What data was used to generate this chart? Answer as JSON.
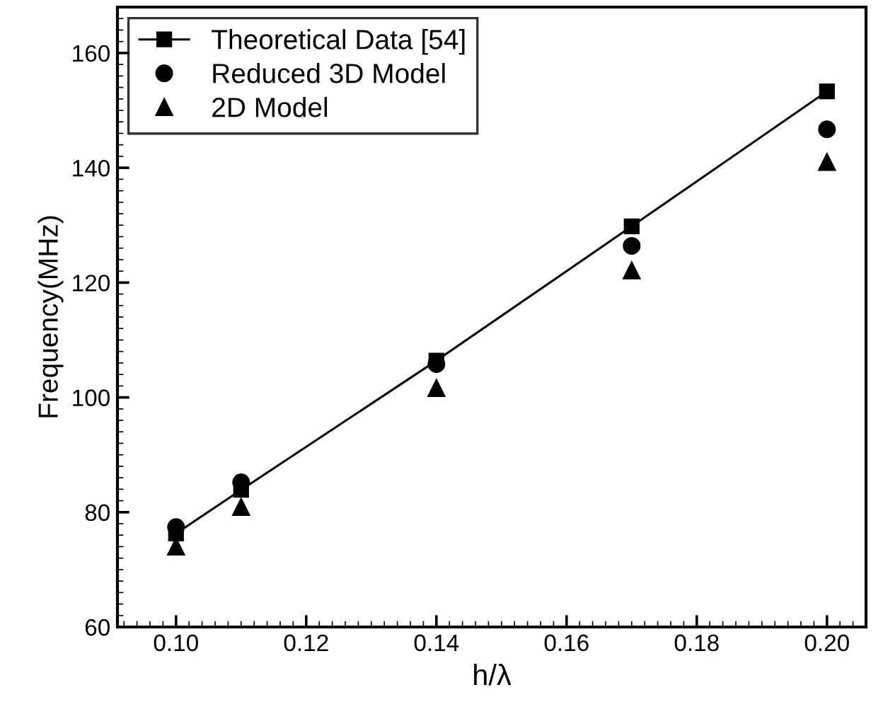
{
  "chart_data": {
    "type": "scatter",
    "xlabel": "h/λ",
    "ylabel": "Frequency(MHz)",
    "x": [
      0.1,
      0.11,
      0.14,
      0.17,
      0.2
    ],
    "series": [
      {
        "name": "Theoretical Data [54]",
        "type": "line",
        "marker": "square",
        "color": "#000000",
        "values": [
          76.3,
          83.9,
          106.4,
          129.8,
          153.3
        ]
      },
      {
        "name": "Reduced 3D Model",
        "marker": "circle",
        "color": "#000000",
        "values": [
          77.4,
          85.2,
          105.8,
          126.4,
          146.7
        ]
      },
      {
        "name": "2D Model",
        "marker": "triangle",
        "color": "#000000",
        "values": [
          74,
          80.9,
          101.6,
          122.1,
          141
        ]
      }
    ],
    "xlim": [
      0.091,
      0.206
    ],
    "xticks": [
      {
        "value": 0.1,
        "label": "0.10"
      },
      {
        "value": 0.12,
        "label": "0.12"
      },
      {
        "value": 0.14,
        "label": "0.14"
      },
      {
        "value": 0.16,
        "label": "0.16"
      },
      {
        "value": 0.18,
        "label": "0.18"
      },
      {
        "value": 0.2,
        "label": "0.20"
      }
    ],
    "ylim": [
      60,
      168
    ],
    "yticks": [
      60,
      80,
      100,
      120,
      140,
      160
    ],
    "legend": "top left",
    "grid": false
  }
}
